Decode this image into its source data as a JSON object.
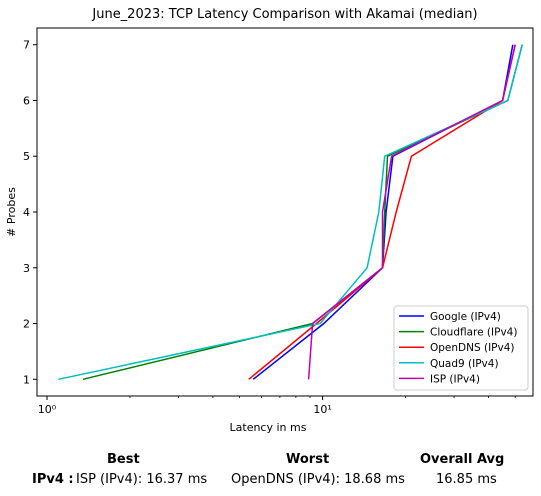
{
  "chart_data": {
    "type": "line",
    "title": "June_2023: TCP Latency Comparison with Akamai (median)",
    "xlabel": "Latency in ms",
    "ylabel": "# Probes",
    "xscale": "log",
    "xlim": [
      0.92,
      58
    ],
    "ylim": [
      0.7,
      7.3
    ],
    "xticks": [
      {
        "value": 1,
        "label": "10⁰"
      },
      {
        "value": 10,
        "label": "10¹"
      }
    ],
    "yticks": [
      1,
      2,
      3,
      4,
      5,
      6,
      7
    ],
    "grid": false,
    "legend_position": "lower-right",
    "series": [
      {
        "name": "Google (IPv4)",
        "color": "#0000ff",
        "points": [
          [
            5.6,
            1
          ],
          [
            10.1,
            2
          ],
          [
            16.5,
            3
          ],
          [
            17,
            4
          ],
          [
            18,
            5
          ],
          [
            45,
            6
          ],
          [
            49,
            7
          ]
        ]
      },
      {
        "name": "Cloudflare (IPv4)",
        "color": "#008000",
        "points": [
          [
            1.35,
            1
          ],
          [
            9.2,
            2
          ],
          [
            16.5,
            3
          ],
          [
            16.8,
            4
          ],
          [
            17.2,
            5
          ],
          [
            47,
            6
          ],
          [
            53,
            7
          ]
        ]
      },
      {
        "name": "OpenDNS (IPv4)",
        "color": "#ff0000",
        "points": [
          [
            5.4,
            1
          ],
          [
            9.5,
            2
          ],
          [
            16.5,
            3
          ],
          [
            18.5,
            4
          ],
          [
            21,
            5
          ],
          [
            45,
            6
          ],
          [
            50,
            7
          ]
        ]
      },
      {
        "name": "Quad9 (IPv4)",
        "color": "#00bfbf",
        "points": [
          [
            1.1,
            1
          ],
          [
            9.8,
            2
          ],
          [
            14.5,
            3
          ],
          [
            16,
            4
          ],
          [
            16.8,
            5
          ],
          [
            47,
            6
          ],
          [
            53,
            7
          ]
        ]
      },
      {
        "name": "ISP (IPv4)",
        "color": "#bf00bf",
        "points": [
          [
            8.9,
            1
          ],
          [
            9.2,
            2
          ],
          [
            16.5,
            3
          ],
          [
            16.5,
            4
          ],
          [
            17.8,
            5
          ],
          [
            45,
            6
          ],
          [
            50,
            7
          ]
        ]
      }
    ]
  },
  "summary": {
    "best_header": "Best",
    "worst_header": "Worst",
    "avg_header": "Overall Avg",
    "row_label": "IPv4 :",
    "best_value": "ISP (IPv4): 16.37 ms",
    "worst_value": "OpenDNS (IPv4): 18.68 ms",
    "avg_value": "16.85 ms"
  }
}
